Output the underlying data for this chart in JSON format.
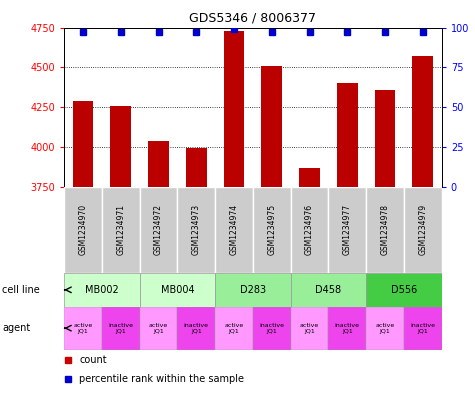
{
  "title": "GDS5346 / 8006377",
  "samples": [
    "GSM1234970",
    "GSM1234971",
    "GSM1234972",
    "GSM1234973",
    "GSM1234974",
    "GSM1234975",
    "GSM1234976",
    "GSM1234977",
    "GSM1234978",
    "GSM1234979"
  ],
  "counts": [
    4290,
    4260,
    4040,
    3990,
    4730,
    4510,
    3870,
    4400,
    4360,
    4570
  ],
  "percentiles": [
    97,
    97,
    97,
    97,
    99,
    97,
    97,
    97,
    97,
    97
  ],
  "ymin": 3750,
  "ymax": 4750,
  "yticks_left": [
    3750,
    4000,
    4250,
    4500,
    4750
  ],
  "yticks_right": [
    0,
    25,
    50,
    75,
    100
  ],
  "cell_lines": [
    {
      "label": "MB002",
      "start": 0,
      "end": 2,
      "color": "#ccffcc"
    },
    {
      "label": "MB004",
      "start": 2,
      "end": 4,
      "color": "#ccffcc"
    },
    {
      "label": "D283",
      "start": 4,
      "end": 6,
      "color": "#99ee99"
    },
    {
      "label": "D458",
      "start": 6,
      "end": 8,
      "color": "#99ee99"
    },
    {
      "label": "D556",
      "start": 8,
      "end": 10,
      "color": "#44cc44"
    }
  ],
  "agents": [
    {
      "label": "active\nJQ1",
      "color": "#ff99ff"
    },
    {
      "label": "inactive\nJQ1",
      "color": "#ee44ee"
    },
    {
      "label": "active\nJQ1",
      "color": "#ff99ff"
    },
    {
      "label": "inactive\nJQ1",
      "color": "#ee44ee"
    },
    {
      "label": "active\nJQ1",
      "color": "#ff99ff"
    },
    {
      "label": "inactive\nJQ1",
      "color": "#ee44ee"
    },
    {
      "label": "active\nJQ1",
      "color": "#ff99ff"
    },
    {
      "label": "inactive\nJQ1",
      "color": "#ee44ee"
    },
    {
      "label": "active\nJQ1",
      "color": "#ff99ff"
    },
    {
      "label": "inactive\nJQ1",
      "color": "#ee44ee"
    }
  ],
  "bar_color": "#bb0000",
  "dot_color": "#0000cc",
  "sample_box_color": "#cccccc",
  "legend_count_color": "#cc0000",
  "legend_pct_color": "#0000cc"
}
